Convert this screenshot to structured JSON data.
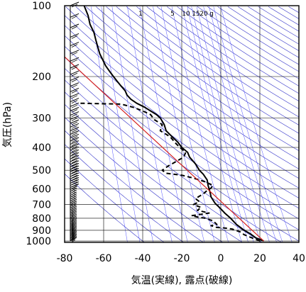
{
  "chart_data": {
    "type": "line",
    "title": "",
    "xlabel": "気温(実線), 露点(破線)",
    "ylabel": "気圧(hPa)",
    "xlim": [
      -80,
      40
    ],
    "ylim": [
      1013,
      100
    ],
    "y_scale": "log",
    "grid": true,
    "x_ticks": [
      -80,
      -60,
      -40,
      -20,
      0,
      20,
      40
    ],
    "x_tick_labels": [
      "-80",
      "-60",
      "-40",
      "-20",
      "0",
      "20",
      "40"
    ],
    "y_ticks": [
      100,
      200,
      300,
      400,
      500,
      600,
      700,
      800,
      900,
      1000
    ],
    "y_tick_labels": [
      "100",
      "200",
      "300",
      "400",
      "500",
      "600",
      "700",
      "800",
      "900",
      "1000"
    ],
    "mixing_ratio_labels": [
      "1",
      "5",
      "10",
      "15",
      "20",
      "g"
    ],
    "colors": {
      "temperature": "#000000",
      "dewpoint": "#000000",
      "reference_line": "#d42020",
      "dry_adiabats": "#3030c8",
      "mixing_ratio_lines": "#5050ff",
      "grid": "#000000",
      "wind_barbs": "#000000"
    },
    "series": [
      {
        "name": "",
        "style": "solid",
        "color": "#000000",
        "points": [
          [
            22,
            1000
          ],
          [
            18,
            970
          ],
          [
            15,
            930
          ],
          [
            12,
            900
          ],
          [
            8,
            850
          ],
          [
            5,
            800
          ],
          [
            2,
            760
          ],
          [
            0,
            730
          ],
          [
            -3,
            690
          ],
          [
            -5,
            650
          ],
          [
            -5.5,
            620
          ],
          [
            -6,
            600
          ],
          [
            -6.5,
            580
          ],
          [
            -7,
            550
          ],
          [
            -9,
            520
          ],
          [
            -11,
            500
          ],
          [
            -13,
            470
          ],
          [
            -16,
            440
          ],
          [
            -17,
            420
          ],
          [
            -20,
            400
          ],
          [
            -22,
            380
          ],
          [
            -25,
            360
          ],
          [
            -28,
            340
          ],
          [
            -29,
            320
          ],
          [
            -31,
            300
          ],
          [
            -33,
            290
          ],
          [
            -36,
            280
          ],
          [
            -39,
            270
          ],
          [
            -43,
            260
          ],
          [
            -46,
            250
          ],
          [
            -48,
            240
          ],
          [
            -49,
            230
          ],
          [
            -51,
            220
          ],
          [
            -53,
            210
          ],
          [
            -55,
            200
          ],
          [
            -57,
            190
          ],
          [
            -59,
            180
          ],
          [
            -62,
            160
          ],
          [
            -63,
            150
          ],
          [
            -64,
            140
          ],
          [
            -65,
            130
          ],
          [
            -67,
            120
          ],
          [
            -68,
            110
          ],
          [
            -69,
            105
          ],
          [
            -70,
            100
          ]
        ]
      },
      {
        "name": "",
        "style": "dashed",
        "color": "#000000",
        "points": [
          [
            20,
            1000
          ],
          [
            16,
            970
          ],
          [
            12,
            940
          ],
          [
            10,
            915
          ],
          [
            6,
            890
          ],
          [
            2,
            880
          ],
          [
            -2,
            875
          ],
          [
            -5,
            860
          ],
          [
            -2,
            850
          ],
          [
            -4,
            820
          ],
          [
            -8,
            800
          ],
          [
            -12,
            790
          ],
          [
            -15,
            780
          ],
          [
            -10,
            770
          ],
          [
            -6,
            760
          ],
          [
            -12,
            740
          ],
          [
            -10,
            720
          ],
          [
            -14,
            700
          ],
          [
            -11,
            680
          ],
          [
            -13,
            660
          ],
          [
            -9,
            630
          ],
          [
            -7,
            610
          ],
          [
            -5,
            595
          ],
          [
            -4,
            580
          ],
          [
            -8,
            560
          ],
          [
            -14,
            540
          ],
          [
            -20,
            525
          ],
          [
            -28,
            515
          ],
          [
            -30,
            500
          ],
          [
            -27,
            480
          ],
          [
            -22,
            455
          ],
          [
            -19,
            440
          ],
          [
            -18,
            420
          ],
          [
            -21,
            400
          ],
          [
            -23,
            385
          ],
          [
            -26,
            360
          ],
          [
            -31,
            340
          ],
          [
            -30,
            320
          ],
          [
            -34,
            305
          ],
          [
            -36,
            290
          ],
          [
            -40,
            280
          ],
          [
            -45,
            270
          ],
          [
            -51,
            262
          ],
          [
            -70,
            260
          ],
          [
            -73,
            260
          ]
        ]
      },
      {
        "name": "",
        "style": "solid",
        "color": "#d42020",
        "points": [
          [
            22,
            1000
          ],
          [
            -80,
            165
          ]
        ]
      }
    ]
  }
}
